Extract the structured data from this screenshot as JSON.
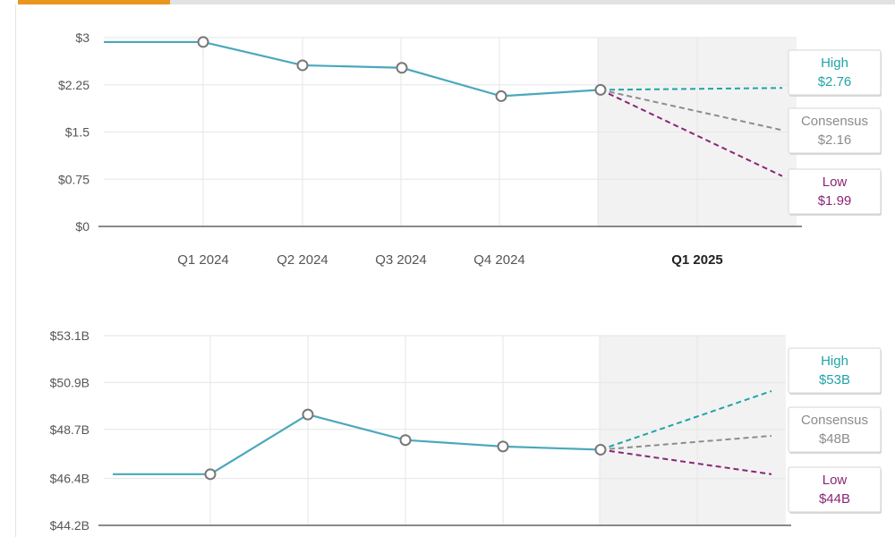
{
  "colors": {
    "accent_tab": "#e8961e",
    "tab_rest": "#e2e2e2",
    "actual": "#4aa8bc",
    "high": "#21a3a8",
    "consensus": "#8c8c8c",
    "low": "#8b2576",
    "forecast_band": "#f2f2f2",
    "grid": "#e6e6e6",
    "axis": "#444444"
  },
  "chart_data": [
    {
      "type": "line",
      "name": "eps",
      "y_ticks": [
        "$3",
        "$2.25",
        "$1.5",
        "$0.75",
        "$0"
      ],
      "y_tick_values": [
        3,
        2.25,
        1.5,
        0.75,
        0
      ],
      "ylim": [
        0,
        3
      ],
      "x_ticks": [
        "Q1 2024",
        "Q2 2024",
        "Q3 2024",
        "Q4 2024",
        "Q1 2025"
      ],
      "x_tick_bold": [
        false,
        false,
        false,
        false,
        true
      ],
      "actual": {
        "x": [
          -1,
          0,
          1,
          2,
          3,
          4
        ],
        "y": [
          2.93,
          2.93,
          2.56,
          2.52,
          2.07,
          2.17
        ]
      },
      "forecast": [
        {
          "key": "high",
          "title": "High",
          "label": "$2.76",
          "end": 2.2
        },
        {
          "key": "consensus",
          "title": "Consensus",
          "label": "$2.16",
          "end": 1.53
        },
        {
          "key": "low",
          "title": "Low",
          "label": "$1.99",
          "end": 0.8
        }
      ]
    },
    {
      "type": "line",
      "name": "revenue",
      "y_ticks": [
        "$53.1B",
        "$50.9B",
        "$48.7B",
        "$46.4B",
        "$44.2B"
      ],
      "y_tick_values": [
        53.1,
        50.9,
        48.7,
        46.4,
        44.2
      ],
      "ylim": [
        44.2,
        53.1
      ],
      "x_ticks": [],
      "x_tick_bold": [],
      "actual": {
        "x": [
          -1,
          0,
          1,
          2,
          3,
          4
        ],
        "y": [
          46.6,
          46.6,
          49.4,
          48.2,
          47.9,
          47.75
        ]
      },
      "forecast": [
        {
          "key": "high",
          "title": "High",
          "label": "$53B",
          "end": 50.5
        },
        {
          "key": "consensus",
          "title": "Consensus",
          "label": "$48B",
          "end": 48.4
        },
        {
          "key": "low",
          "title": "Low",
          "label": "$44B",
          "end": 46.6
        }
      ]
    }
  ]
}
